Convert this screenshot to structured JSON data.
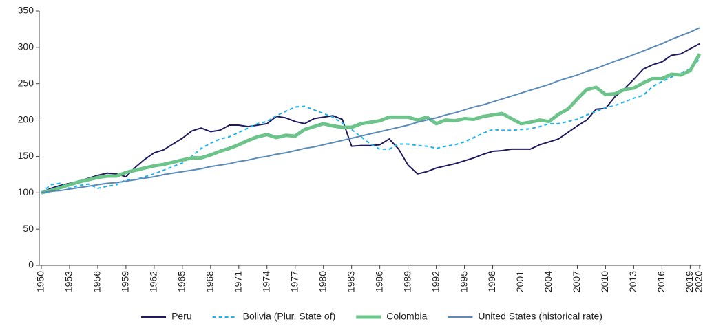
{
  "chart_data": {
    "type": "line",
    "x": [
      1950,
      1951,
      1952,
      1953,
      1954,
      1955,
      1956,
      1957,
      1958,
      1959,
      1960,
      1961,
      1962,
      1963,
      1964,
      1965,
      1966,
      1967,
      1968,
      1969,
      1970,
      1971,
      1972,
      1973,
      1974,
      1975,
      1976,
      1977,
      1978,
      1979,
      1980,
      1981,
      1982,
      1983,
      1984,
      1985,
      1986,
      1987,
      1988,
      1989,
      1990,
      1991,
      1992,
      1993,
      1994,
      1995,
      1996,
      1997,
      1998,
      1999,
      2000,
      2001,
      2002,
      2003,
      2004,
      2005,
      2006,
      2007,
      2008,
      2009,
      2010,
      2011,
      2012,
      2013,
      2014,
      2015,
      2016,
      2017,
      2018,
      2019,
      2020
    ],
    "series": [
      {
        "name": "Peru",
        "color": "#1f1b5e",
        "line_width": 2,
        "line_style": "solid",
        "values": [
          100,
          106,
          110,
          113,
          116,
          120,
          124,
          127,
          126,
          122,
          135,
          146,
          155,
          159,
          167,
          175,
          185,
          189,
          184,
          186,
          193,
          193,
          191,
          193,
          195,
          205,
          203,
          198,
          195,
          202,
          204,
          206,
          201,
          164,
          165,
          165,
          166,
          174,
          160,
          138,
          126,
          129,
          134,
          137,
          140,
          144,
          148,
          153,
          157,
          158,
          160,
          160,
          160,
          166,
          170,
          174,
          183,
          192,
          200,
          215,
          216,
          232,
          243,
          256,
          270,
          276,
          280,
          289,
          291,
          298,
          305
        ]
      },
      {
        "name": "Bolivia (Plur. State of)",
        "color": "#1cb3ea",
        "line_width": 2,
        "line_style": "dashed",
        "values": [
          100,
          111,
          113,
          106,
          110,
          112,
          106,
          109,
          111,
          118,
          118,
          122,
          126,
          131,
          136,
          141,
          150,
          161,
          168,
          174,
          177,
          183,
          189,
          195,
          198,
          206,
          212,
          218,
          219,
          214,
          209,
          204,
          196,
          187,
          177,
          167,
          160,
          160,
          167,
          167,
          165,
          164,
          161,
          164,
          166,
          170,
          176,
          182,
          187,
          186,
          186,
          187,
          188,
          191,
          195,
          195,
          198,
          201,
          207,
          212,
          217,
          220,
          225,
          230,
          234,
          246,
          253,
          259,
          265,
          270,
          284
        ]
      },
      {
        "name": "Colombia",
        "color": "#6cc48a",
        "line_width": 5,
        "line_style": "solid",
        "values": [
          100,
          103,
          107,
          111,
          115,
          118,
          121,
          123,
          123,
          128,
          131,
          134,
          137,
          139,
          142,
          145,
          148,
          148,
          152,
          157,
          161,
          166,
          172,
          177,
          180,
          176,
          179,
          178,
          187,
          191,
          195,
          192,
          190,
          190,
          195,
          197,
          199,
          204,
          204,
          204,
          200,
          204,
          195,
          200,
          199,
          202,
          201,
          205,
          207,
          209,
          202,
          195,
          197,
          200,
          198,
          208,
          215,
          229,
          242,
          245,
          235,
          236,
          242,
          244,
          251,
          257,
          257,
          263,
          262,
          268,
          291
        ]
      },
      {
        "name": "United States (historical rate)",
        "color": "#5b8bb8",
        "line_width": 2,
        "line_style": "solid",
        "values": [
          100,
          102,
          103,
          105,
          107,
          109,
          111,
          113,
          114,
          116,
          118,
          120,
          122,
          125,
          127,
          129,
          131,
          133,
          136,
          138,
          140,
          143,
          145,
          148,
          150,
          153,
          155,
          158,
          161,
          163,
          166,
          169,
          172,
          175,
          178,
          181,
          184,
          187,
          190,
          193,
          197,
          200,
          203,
          207,
          210,
          214,
          218,
          221,
          225,
          229,
          233,
          237,
          241,
          245,
          249,
          254,
          258,
          262,
          267,
          271,
          276,
          281,
          285,
          290,
          295,
          300,
          305,
          311,
          316,
          321,
          327
        ]
      }
    ],
    "xlim": [
      1950,
      2020
    ],
    "xticks": [
      1950,
      1953,
      1956,
      1959,
      1962,
      1965,
      1968,
      1971,
      1974,
      1977,
      1980,
      1983,
      1986,
      1989,
      1992,
      1995,
      1998,
      2001,
      2004,
      2007,
      2010,
      2013,
      2016,
      2019,
      2020
    ],
    "ylim": [
      0,
      350
    ],
    "yticks": [
      0,
      50,
      100,
      150,
      200,
      250,
      300,
      350
    ],
    "grid": false,
    "legend": "bottom"
  }
}
